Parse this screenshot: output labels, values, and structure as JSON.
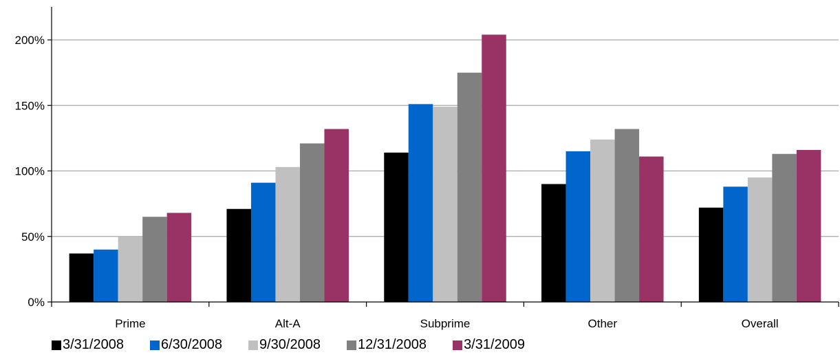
{
  "chart_data": {
    "type": "bar",
    "categories": [
      "Prime",
      "Alt-A",
      "Subprime",
      "Other",
      "Overall"
    ],
    "series": [
      {
        "name": "3/31/2008",
        "color": "#000000",
        "values": [
          37,
          71,
          114,
          90,
          72
        ]
      },
      {
        "name": "6/30/2008",
        "color": "#0066CC",
        "values": [
          40,
          91,
          151,
          115,
          88
        ]
      },
      {
        "name": "9/30/2008",
        "color": "#C0C0C0",
        "values": [
          50,
          103,
          149,
          124,
          95
        ]
      },
      {
        "name": "12/31/2008",
        "color": "#808080",
        "values": [
          65,
          121,
          175,
          132,
          113
        ]
      },
      {
        "name": "3/31/2009",
        "color": "#993366",
        "values": [
          68,
          132,
          204,
          111,
          116
        ]
      }
    ],
    "y_ticks": [
      "0%",
      "50%",
      "100%",
      "150%",
      "200%"
    ],
    "y_tick_values": [
      0,
      50,
      100,
      150,
      200
    ],
    "ylim": [
      0,
      220
    ],
    "grid": true,
    "legend_position": "bottom-left"
  }
}
